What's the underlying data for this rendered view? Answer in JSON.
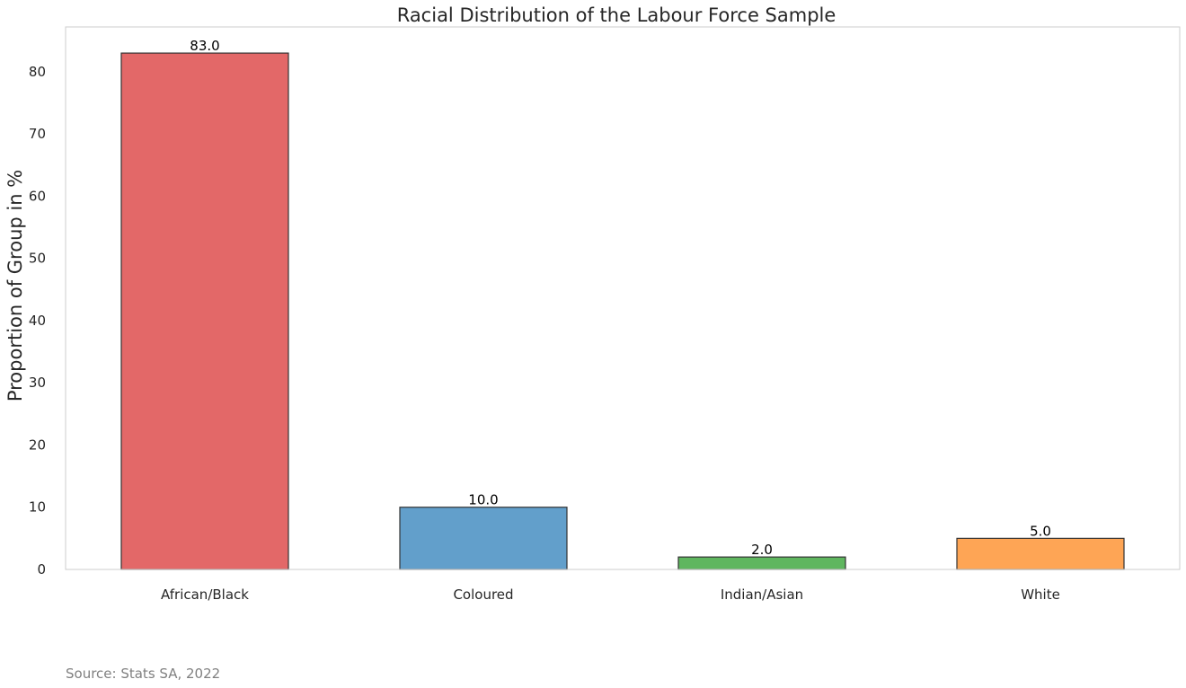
{
  "chart_data": {
    "type": "bar",
    "title": "Racial Distribution of the Labour Force Sample",
    "xlabel": "",
    "ylabel": "Proportion of Group in %",
    "categories": [
      "African/Black",
      "Coloured",
      "Indian/Asian",
      "White"
    ],
    "values": [
      83.0,
      10.0,
      2.0,
      5.0
    ],
    "value_labels": [
      "83.0",
      "10.0",
      "2.0",
      "5.0"
    ],
    "colors": [
      "#e36868",
      "#629fcb",
      "#5fb65f",
      "#fea555"
    ],
    "edge_color": "#333333",
    "ylim": [
      0,
      87.2
    ],
    "yticks": [
      0,
      10,
      20,
      30,
      40,
      50,
      60,
      70,
      80
    ],
    "grid": false,
    "legend": "none"
  },
  "source_note": "Source: Stats SA, 2022"
}
